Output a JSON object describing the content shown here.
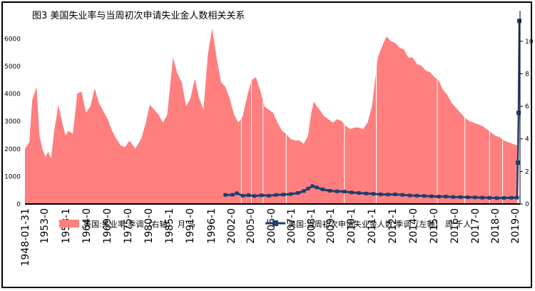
{
  "chart_data": {
    "type": "area+line",
    "title": "图3   美国失业率与当周初次申请失业金人数相关关系",
    "left_axis": {
      "ylim": [
        0,
        6500
      ],
      "ticks": [
        0,
        1000,
        2000,
        3000,
        4000,
        5000,
        6000
      ]
    },
    "right_axis": {
      "ylim": [
        0,
        11
      ],
      "ticks": [
        0,
        2,
        4,
        6,
        8,
        10
      ]
    },
    "categories": [
      "1948-01-31",
      "1953-0",
      "1958-1",
      "1964-0",
      "1969-0",
      "1975-0",
      "1980-0",
      "1985-1",
      "1991-0",
      "1996-1",
      "2002-0",
      "2005-0",
      "2006-0",
      "2007-1",
      "2008-1",
      "2009-1",
      "2010-1",
      "2011-1",
      "2012-1",
      "2014-0",
      "2015-0",
      "2016-0",
      "2017-0",
      "2018-0",
      "2019-0"
    ],
    "series": [
      {
        "name": "美国:失业率:季调（右轴） 月 %",
        "axis": "right",
        "type": "area",
        "color": "#ff7f7f",
        "points": [
          [
            0,
            3.4
          ],
          [
            0.3,
            3.8
          ],
          [
            0.5,
            6.4
          ],
          [
            0.8,
            7.2
          ],
          [
            1.0,
            4.2
          ],
          [
            1.2,
            3.4
          ],
          [
            1.4,
            2.9
          ],
          [
            1.6,
            3.2
          ],
          [
            1.8,
            2.8
          ],
          [
            2.0,
            4.4
          ],
          [
            2.3,
            6.1
          ],
          [
            2.6,
            4.9
          ],
          [
            2.8,
            4.2
          ],
          [
            3.0,
            4.5
          ],
          [
            3.3,
            4.3
          ],
          [
            3.6,
            6.8
          ],
          [
            3.9,
            6.9
          ],
          [
            4.2,
            5.6
          ],
          [
            4.5,
            6.0
          ],
          [
            4.8,
            7.1
          ],
          [
            5.1,
            6.2
          ],
          [
            5.4,
            5.7
          ],
          [
            5.7,
            5.2
          ],
          [
            6.0,
            4.5
          ],
          [
            6.3,
            4.0
          ],
          [
            6.6,
            3.6
          ],
          [
            6.9,
            3.5
          ],
          [
            7.2,
            3.9
          ],
          [
            7.6,
            3.4
          ],
          [
            8.0,
            4.0
          ],
          [
            8.3,
            4.9
          ],
          [
            8.6,
            6.1
          ],
          [
            8.9,
            5.8
          ],
          [
            9.2,
            5.5
          ],
          [
            9.5,
            5.0
          ],
          [
            9.8,
            5.5
          ],
          [
            10.2,
            9.0
          ],
          [
            10.5,
            8.0
          ],
          [
            10.8,
            7.5
          ],
          [
            11.1,
            6.0
          ],
          [
            11.4,
            6.5
          ],
          [
            11.7,
            7.7
          ],
          [
            12.0,
            6.5
          ],
          [
            12.3,
            5.8
          ],
          [
            12.6,
            9.2
          ],
          [
            12.9,
            10.8
          ],
          [
            13.2,
            9.0
          ],
          [
            13.5,
            7.5
          ],
          [
            13.8,
            7.2
          ],
          [
            14.1,
            6.5
          ],
          [
            14.4,
            5.5
          ],
          [
            14.7,
            5.0
          ],
          [
            15.0,
            5.4
          ],
          [
            15.3,
            6.6
          ],
          [
            15.6,
            7.6
          ],
          [
            15.9,
            7.8
          ],
          [
            16.2,
            7.0
          ],
          [
            16.5,
            6.0
          ],
          [
            16.8,
            5.8
          ],
          [
            17.1,
            5.6
          ],
          [
            17.4,
            5.0
          ],
          [
            17.7,
            4.5
          ],
          [
            18.0,
            4.3
          ],
          [
            18.3,
            4.0
          ],
          [
            18.6,
            3.9
          ],
          [
            18.9,
            3.9
          ],
          [
            19.2,
            3.7
          ],
          [
            19.5,
            4.2
          ],
          [
            19.7,
            5.5
          ],
          [
            19.9,
            6.3
          ],
          [
            20.1,
            6.0
          ],
          [
            20.3,
            5.8
          ],
          [
            20.6,
            5.4
          ],
          [
            20.9,
            5.2
          ],
          [
            21.2,
            5.0
          ],
          [
            21.5,
            5.2
          ],
          [
            21.8,
            5.1
          ],
          [
            22.1,
            4.8
          ],
          [
            22.4,
            4.6
          ],
          [
            22.7,
            4.7
          ],
          [
            23.0,
            4.7
          ],
          [
            23.3,
            4.6
          ],
          [
            23.6,
            5.0
          ],
          [
            23.9,
            6.0
          ],
          [
            24.1,
            7.5
          ],
          [
            24.3,
            9.0
          ],
          [
            24.6,
            9.7
          ],
          [
            24.9,
            10.3
          ],
          [
            25.2,
            10.0
          ],
          [
            25.5,
            9.9
          ],
          [
            25.8,
            9.6
          ],
          [
            26.1,
            9.5
          ],
          [
            26.4,
            9.0
          ],
          [
            26.7,
            9.0
          ],
          [
            27.0,
            8.6
          ],
          [
            27.3,
            8.5
          ],
          [
            27.6,
            8.2
          ],
          [
            27.9,
            8.1
          ],
          [
            28.2,
            7.8
          ],
          [
            28.5,
            7.6
          ],
          [
            28.8,
            7.0
          ],
          [
            29.1,
            6.7
          ],
          [
            29.4,
            6.2
          ],
          [
            29.7,
            5.9
          ],
          [
            30.0,
            5.6
          ],
          [
            30.3,
            5.3
          ],
          [
            30.6,
            5.1
          ],
          [
            30.9,
            5.0
          ],
          [
            31.2,
            4.9
          ],
          [
            31.5,
            4.8
          ],
          [
            31.8,
            4.6
          ],
          [
            32.1,
            4.4
          ],
          [
            32.4,
            4.2
          ],
          [
            32.7,
            4.1
          ],
          [
            33.0,
            3.9
          ],
          [
            33.3,
            3.8
          ],
          [
            33.6,
            3.7
          ],
          [
            33.9,
            3.6
          ]
        ],
        "gaps": [
          14.9,
          15.6,
          16.4,
          18.0,
          22.0,
          24.2,
          28.4,
          30.3,
          32.0,
          32.9
        ]
      },
      {
        "name": "美国:当周初次申请失业金人数:季调（左轴） 周 千人",
        "axis": "left",
        "type": "line",
        "color": "#1f3f6f",
        "points": [
          [
            13.8,
            330
          ],
          [
            14.3,
            335
          ],
          [
            14.6,
            390
          ],
          [
            15.0,
            300
          ],
          [
            15.4,
            320
          ],
          [
            15.8,
            290
          ],
          [
            16.3,
            315
          ],
          [
            16.8,
            300
          ],
          [
            17.3,
            330
          ],
          [
            17.8,
            340
          ],
          [
            18.3,
            360
          ],
          [
            18.8,
            400
          ],
          [
            19.2,
            470
          ],
          [
            19.5,
            560
          ],
          [
            19.8,
            650
          ],
          [
            20.1,
            600
          ],
          [
            20.5,
            530
          ],
          [
            21.0,
            480
          ],
          [
            21.5,
            460
          ],
          [
            22.0,
            450
          ],
          [
            22.5,
            420
          ],
          [
            23.0,
            400
          ],
          [
            23.5,
            380
          ],
          [
            24.0,
            370
          ],
          [
            24.5,
            350
          ],
          [
            25.0,
            345
          ],
          [
            25.5,
            350
          ],
          [
            26.0,
            330
          ],
          [
            26.5,
            310
          ],
          [
            27.0,
            300
          ],
          [
            27.5,
            290
          ],
          [
            28.0,
            280
          ],
          [
            28.5,
            270
          ],
          [
            29.0,
            270
          ],
          [
            29.5,
            255
          ],
          [
            30.0,
            250
          ],
          [
            30.5,
            245
          ],
          [
            31.0,
            240
          ],
          [
            31.5,
            230
          ],
          [
            32.0,
            225
          ],
          [
            32.5,
            215
          ],
          [
            33.0,
            220
          ],
          [
            33.5,
            225
          ],
          [
            33.9,
            230
          ]
        ],
        "spikes": [
          [
            33.95,
            1500
          ],
          [
            34.0,
            3307
          ],
          [
            34.05,
            6648
          ]
        ]
      }
    ]
  }
}
